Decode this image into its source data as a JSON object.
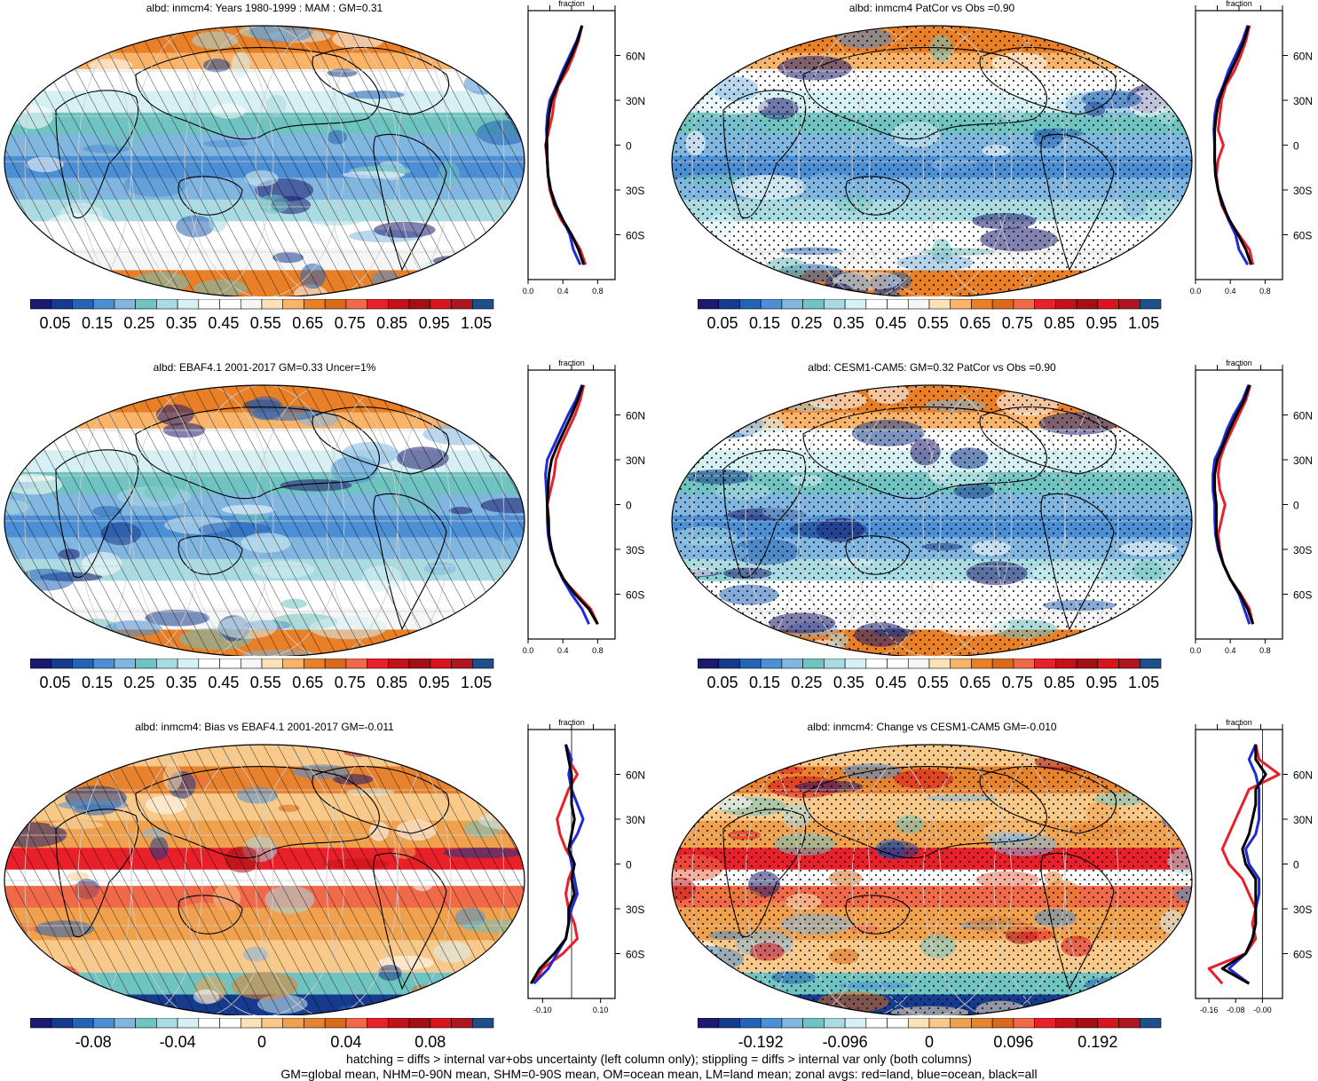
{
  "footer": {
    "line1": "hatching = diffs > internal var+obs uncertainty (left column only); stippling = diffs > internal var only (both columns)",
    "line2": "GM=global mean, NHM=0-90N mean, SHM=0-90S mean, OM=ocean mean, LM=land mean; zonal avgs: red=land, blue=ocean, black=all"
  },
  "zonal_title": "fraction",
  "lat_labels": [
    "60N",
    "30N",
    "0",
    "30S",
    "60S"
  ],
  "palettes": {
    "abs": [
      "#1b1a6e",
      "#163a8c",
      "#2463b5",
      "#4c8fd4",
      "#80b6e0",
      "#6fc3c0",
      "#a9dbe2",
      "#d7f0f4",
      "#ffffff",
      "#ffffff",
      "#f6f6f6",
      "#fde2b8",
      "#f9b46a",
      "#e97f26",
      "#d96a1c",
      "#f06a4a",
      "#e8202a",
      "#c21118",
      "#a30f14",
      "#d8141c",
      "#b01522",
      "#1f4f8a"
    ],
    "diff": [
      "#1b1a6e",
      "#163a8c",
      "#2463b5",
      "#4c8fd4",
      "#80b6e0",
      "#6fc3c0",
      "#a9dbe2",
      "#d7f0f4",
      "#ffffff",
      "#ffffff",
      "#fde2b8",
      "#f9c98a",
      "#f0a14e",
      "#e7822e",
      "#d96a1c",
      "#f06a4a",
      "#e8202a",
      "#c21118",
      "#a30f14",
      "#d8141c",
      "#b01522",
      "#1f4f8a"
    ]
  },
  "panels": [
    {
      "title": "albd: inmcm4: Years 1980-1999 : MAM : GM=0.31",
      "kind": "abs",
      "hatch": true,
      "stipple": false,
      "cbar_labels": [
        "0.05",
        "0.15",
        "0.25",
        "0.35",
        "0.45",
        "0.55",
        "0.65",
        "0.75",
        "0.85",
        "0.95",
        "1.05"
      ],
      "chart_data": {
        "type": "line",
        "title": "fraction",
        "xticks": [
          "0.0",
          "0.4",
          "0.8"
        ],
        "xlim": [
          0,
          1.0
        ],
        "lat": [
          80,
          70,
          60,
          50,
          40,
          30,
          20,
          10,
          0,
          -10,
          -20,
          -30,
          -40,
          -50,
          -60,
          -70,
          -80
        ],
        "series": [
          {
            "name": "land",
            "color": "#e8202a",
            "values": [
              0.62,
              0.58,
              0.52,
              0.45,
              0.35,
              0.3,
              0.28,
              0.24,
              0.2,
              0.22,
              0.23,
              0.25,
              0.3,
              0.38,
              0.5,
              0.6,
              0.66
            ]
          },
          {
            "name": "ocean",
            "color": "#1f2bd6",
            "values": [
              0.62,
              0.56,
              0.48,
              0.4,
              0.33,
              0.25,
              0.22,
              0.21,
              0.22,
              0.22,
              0.23,
              0.26,
              0.32,
              0.4,
              0.48,
              0.52,
              0.6
            ]
          },
          {
            "name": "all",
            "color": "#000000",
            "values": [
              0.62,
              0.57,
              0.5,
              0.42,
              0.34,
              0.27,
              0.24,
              0.22,
              0.21,
              0.22,
              0.23,
              0.26,
              0.31,
              0.4,
              0.5,
              0.58,
              0.64
            ]
          }
        ]
      }
    },
    {
      "title": "albd: inmcm4 PatCor vs Obs =0.90",
      "kind": "abs",
      "hatch": false,
      "stipple": true,
      "cbar_labels": [
        "0.05",
        "0.15",
        "0.25",
        "0.35",
        "0.45",
        "0.55",
        "0.65",
        "0.75",
        "0.85",
        "0.95",
        "1.05"
      ],
      "chart_data": {
        "type": "line",
        "title": "fraction",
        "xticks": [
          "0.0",
          "0.4",
          "0.8"
        ],
        "xlim": [
          0,
          1.0
        ],
        "lat": [
          80,
          70,
          60,
          50,
          40,
          30,
          20,
          10,
          0,
          -10,
          -20,
          -30,
          -40,
          -50,
          -60,
          -70,
          -80
        ],
        "series": [
          {
            "name": "land",
            "color": "#e8202a",
            "values": [
              0.62,
              0.58,
              0.52,
              0.45,
              0.35,
              0.3,
              0.28,
              0.26,
              0.32,
              0.26,
              0.24,
              0.26,
              0.3,
              0.38,
              0.5,
              0.62,
              0.66
            ]
          },
          {
            "name": "ocean",
            "color": "#1f2bd6",
            "values": [
              0.6,
              0.54,
              0.46,
              0.38,
              0.32,
              0.25,
              0.22,
              0.21,
              0.22,
              0.22,
              0.23,
              0.26,
              0.32,
              0.38,
              0.46,
              0.5,
              0.6
            ]
          },
          {
            "name": "all",
            "color": "#000000",
            "values": [
              0.61,
              0.56,
              0.49,
              0.41,
              0.33,
              0.27,
              0.24,
              0.22,
              0.22,
              0.22,
              0.23,
              0.26,
              0.31,
              0.39,
              0.49,
              0.58,
              0.64
            ]
          }
        ]
      }
    },
    {
      "title": "albd: EBAF4.1 2001-2017 GM=0.33 Uncer=1%",
      "kind": "abs",
      "hatch": true,
      "stipple": false,
      "cbar_labels": [
        "0.05",
        "0.15",
        "0.25",
        "0.35",
        "0.45",
        "0.55",
        "0.65",
        "0.75",
        "0.85",
        "0.95",
        "1.05"
      ],
      "chart_data": {
        "type": "line",
        "title": "fraction",
        "xticks": [
          "0.0",
          "0.4",
          "0.8"
        ],
        "xlim": [
          0,
          1.0
        ],
        "lat": [
          80,
          70,
          60,
          50,
          40,
          30,
          20,
          10,
          0,
          -10,
          -20,
          -30,
          -40,
          -50,
          -60,
          -70,
          -80
        ],
        "series": [
          {
            "name": "land",
            "color": "#e8202a",
            "values": [
              0.64,
              0.6,
              0.54,
              0.46,
              0.38,
              0.32,
              0.3,
              0.26,
              0.22,
              0.24,
              0.24,
              0.27,
              0.32,
              0.4,
              0.56,
              0.72,
              0.8
            ]
          },
          {
            "name": "ocean",
            "color": "#1f2bd6",
            "values": [
              0.62,
              0.55,
              0.46,
              0.38,
              0.3,
              0.22,
              0.2,
              0.21,
              0.22,
              0.22,
              0.23,
              0.26,
              0.32,
              0.4,
              0.5,
              0.62,
              0.7
            ]
          },
          {
            "name": "all",
            "color": "#000000",
            "values": [
              0.63,
              0.57,
              0.5,
              0.42,
              0.34,
              0.27,
              0.24,
              0.23,
              0.22,
              0.23,
              0.24,
              0.27,
              0.32,
              0.41,
              0.54,
              0.7,
              0.8
            ]
          }
        ]
      }
    },
    {
      "title": "albd: CESM1-CAM5: GM=0.32 PatCor vs Obs =0.90",
      "kind": "abs",
      "hatch": false,
      "stipple": true,
      "cbar_labels": [
        "0.05",
        "0.15",
        "0.25",
        "0.35",
        "0.45",
        "0.55",
        "0.65",
        "0.75",
        "0.85",
        "0.95",
        "1.05"
      ],
      "chart_data": {
        "type": "line",
        "title": "fraction",
        "xticks": [
          "0.0",
          "0.4",
          "0.8"
        ],
        "xlim": [
          0,
          1.0
        ],
        "lat": [
          80,
          70,
          60,
          50,
          40,
          30,
          20,
          10,
          0,
          -10,
          -20,
          -30,
          -40,
          -50,
          -60,
          -70,
          -80
        ],
        "series": [
          {
            "name": "land",
            "color": "#e8202a",
            "values": [
              0.63,
              0.58,
              0.5,
              0.42,
              0.34,
              0.28,
              0.26,
              0.28,
              0.34,
              0.3,
              0.26,
              0.28,
              0.32,
              0.4,
              0.52,
              0.62,
              0.66
            ]
          },
          {
            "name": "ocean",
            "color": "#1f2bd6",
            "values": [
              0.61,
              0.54,
              0.44,
              0.36,
              0.3,
              0.22,
              0.2,
              0.2,
              0.22,
              0.22,
              0.23,
              0.26,
              0.32,
              0.4,
              0.5,
              0.56,
              0.62
            ]
          },
          {
            "name": "all",
            "color": "#000000",
            "values": [
              0.62,
              0.56,
              0.47,
              0.39,
              0.32,
              0.25,
              0.22,
              0.22,
              0.24,
              0.24,
              0.24,
              0.27,
              0.32,
              0.4,
              0.51,
              0.6,
              0.66
            ]
          }
        ]
      }
    },
    {
      "title": "albd: inmcm4: Bias vs EBAF4.1 2001-2017 GM=-0.011",
      "kind": "diff",
      "hatch": true,
      "stipple": false,
      "cbar_labels": [
        "-0.08",
        "-0.04",
        "0",
        "0.04",
        "0.08"
      ],
      "cbar_label_slots": [
        2,
        6,
        10,
        14,
        18
      ],
      "chart_data": {
        "type": "line",
        "title": "fraction",
        "xticks": [
          "-0.10",
          "0.10"
        ],
        "xlim": [
          -0.15,
          0.15
        ],
        "zero_line": 0,
        "lat": [
          80,
          70,
          60,
          50,
          40,
          30,
          20,
          10,
          0,
          -10,
          -20,
          -30,
          -40,
          -50,
          -60,
          -70,
          -80
        ],
        "series": [
          {
            "name": "land",
            "color": "#e8202a",
            "values": [
              -0.02,
              -0.01,
              0.02,
              -0.01,
              -0.03,
              -0.05,
              -0.04,
              -0.02,
              0.01,
              -0.01,
              -0.02,
              -0.01,
              0.01,
              0.02,
              -0.03,
              -0.1,
              -0.13
            ]
          },
          {
            "name": "ocean",
            "color": "#1f2bd6",
            "values": [
              -0.02,
              0.0,
              -0.01,
              0.0,
              0.02,
              0.04,
              0.02,
              -0.01,
              0.0,
              0.01,
              0.02,
              0.0,
              -0.01,
              -0.02,
              -0.05,
              -0.08,
              -0.13
            ]
          },
          {
            "name": "all",
            "color": "#000000",
            "values": [
              -0.02,
              -0.01,
              0.0,
              0.0,
              0.0,
              0.01,
              0.0,
              -0.01,
              0.01,
              0.0,
              0.01,
              -0.01,
              -0.01,
              -0.02,
              -0.06,
              -0.11,
              -0.14
            ]
          }
        ]
      }
    },
    {
      "title": "albd: inmcm4: Change vs CESM1-CAM5 GM=-0.010",
      "kind": "diff",
      "hatch": false,
      "stipple": true,
      "cbar_labels": [
        "-0.192",
        "-0.096",
        "0",
        "0.096",
        "0.192"
      ],
      "cbar_label_slots": [
        2,
        6,
        10,
        14,
        18
      ],
      "chart_data": {
        "type": "line",
        "title": "fraction",
        "xticks": [
          "-0.16",
          "-0.08",
          "-0.00"
        ],
        "xlim": [
          -0.2,
          0.06
        ],
        "zero_line": 0,
        "lat": [
          80,
          70,
          60,
          50,
          40,
          30,
          20,
          10,
          0,
          -10,
          -20,
          -30,
          -40,
          -50,
          -60,
          -70,
          -80
        ],
        "series": [
          {
            "name": "land",
            "color": "#e8202a",
            "values": [
              -0.02,
              -0.01,
              0.05,
              -0.04,
              -0.06,
              -0.08,
              -0.1,
              -0.12,
              -0.1,
              -0.06,
              -0.04,
              -0.02,
              -0.03,
              -0.02,
              -0.05,
              -0.16,
              -0.12
            ]
          },
          {
            "name": "ocean",
            "color": "#1f2bd6",
            "values": [
              -0.02,
              -0.04,
              -0.02,
              -0.01,
              -0.01,
              -0.01,
              -0.02,
              -0.05,
              -0.04,
              -0.01,
              -0.01,
              -0.02,
              -0.02,
              -0.03,
              -0.05,
              -0.1,
              -0.04
            ]
          },
          {
            "name": "all",
            "color": "#000000",
            "values": [
              -0.02,
              -0.02,
              0.01,
              -0.02,
              -0.02,
              -0.03,
              -0.04,
              -0.06,
              -0.05,
              -0.02,
              -0.02,
              -0.02,
              -0.02,
              -0.03,
              -0.05,
              -0.12,
              -0.04
            ]
          }
        ]
      }
    }
  ]
}
